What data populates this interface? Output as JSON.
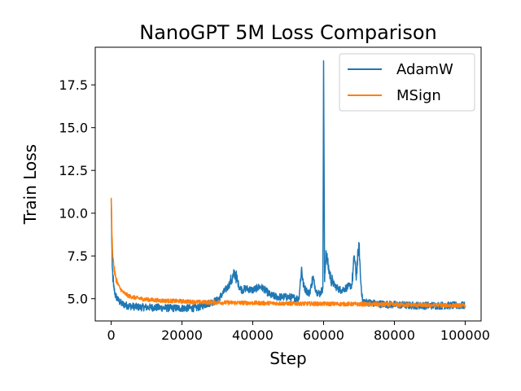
{
  "chart_data": {
    "type": "line",
    "title": "NanoGPT 5M Loss Comparison",
    "xlabel": "Step",
    "ylabel": "Train Loss",
    "xlim": [
      -4500,
      104500
    ],
    "ylim": [
      3.7,
      19.7
    ],
    "xticks": [
      0,
      20000,
      40000,
      60000,
      80000,
      100000
    ],
    "xtick_labels": [
      "0",
      "20000",
      "40000",
      "60000",
      "80000",
      "100000"
    ],
    "yticks": [
      5.0,
      7.5,
      10.0,
      12.5,
      15.0,
      17.5
    ],
    "ytick_labels": [
      "5.0",
      "7.5",
      "10.0",
      "12.5",
      "15.0",
      "17.5"
    ],
    "grid": false,
    "legend_position": "top-right",
    "series": [
      {
        "name": "AdamW",
        "color": "#1f77b4",
        "x": [
          0,
          300,
          700,
          1200,
          2000,
          3000,
          4500,
          6000,
          8000,
          10000,
          13000,
          16000,
          20000,
          24000,
          27000,
          30000,
          31500,
          33000,
          34000,
          35000,
          36000,
          37000,
          38000,
          40000,
          42000,
          43000,
          45000,
          47000,
          50000,
          53000,
          53800,
          54300,
          55000,
          56000,
          57000,
          58000,
          59000,
          59800,
          60000,
          60300,
          60700,
          61200,
          62000,
          63000,
          64000,
          65000,
          66000,
          67000,
          68000,
          68700,
          69200,
          70000,
          70500,
          71000,
          72000,
          75000,
          80000,
          85000,
          90000,
          95000,
          100000
        ],
        "values": [
          10.8,
          6.8,
          5.7,
          5.2,
          4.9,
          4.7,
          4.6,
          4.55,
          4.5,
          4.5,
          4.48,
          4.45,
          4.45,
          4.45,
          4.7,
          4.9,
          5.3,
          5.7,
          6.1,
          6.5,
          5.8,
          5.5,
          5.6,
          5.5,
          5.7,
          5.6,
          5.2,
          5.1,
          5.1,
          5.0,
          6.8,
          5.8,
          5.5,
          5.3,
          6.2,
          5.4,
          5.3,
          5.6,
          18.9,
          6.0,
          7.8,
          7.0,
          6.2,
          5.8,
          5.6,
          5.5,
          5.6,
          5.7,
          5.8,
          7.5,
          6.3,
          8.2,
          6.0,
          4.9,
          4.8,
          4.7,
          4.65,
          4.6,
          4.6,
          4.6,
          4.6
        ]
      },
      {
        "name": "MSign",
        "color": "#ff7f0e",
        "x": [
          0,
          250,
          500,
          800,
          1200,
          1800,
          2500,
          3500,
          5000,
          7000,
          9000,
          12000,
          15000,
          20000,
          25000,
          30000,
          40000,
          50000,
          60000,
          70000,
          80000,
          90000,
          100000
        ],
        "values": [
          10.9,
          8.6,
          7.4,
          6.8,
          6.3,
          5.9,
          5.6,
          5.35,
          5.15,
          5.05,
          4.98,
          4.92,
          4.88,
          4.85,
          4.8,
          4.78,
          4.75,
          4.72,
          4.7,
          4.68,
          4.65,
          4.62,
          4.6
        ]
      }
    ]
  }
}
